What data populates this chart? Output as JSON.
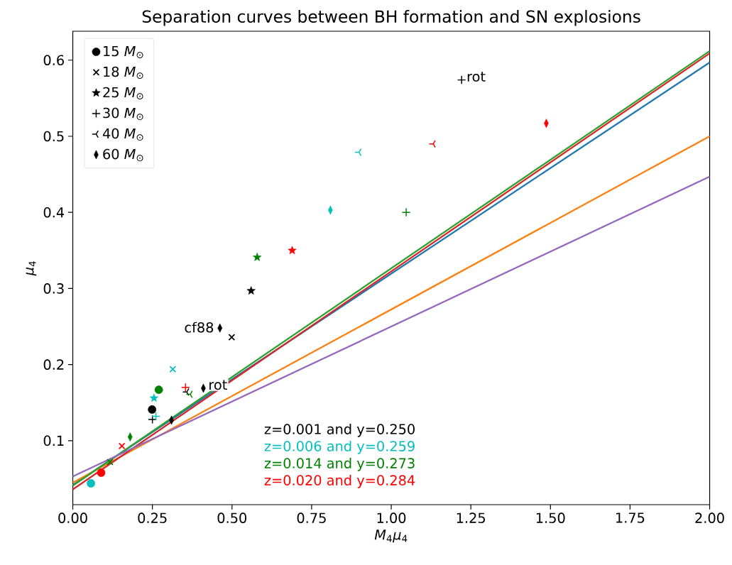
{
  "chart_data": {
    "type": "scatter",
    "title": "Separation curves between BH formation and SN explosions",
    "xlabel": "*M*$_{4}$*μ*$_{4}$",
    "ylabel": "*μ*$_{4}$",
    "xlim": [
      0,
      2
    ],
    "ylim": [
      0.016,
      0.638
    ],
    "xticks": [
      {
        "value": 0,
        "label": "0.00"
      },
      0.25,
      {
        "value": 0.5,
        "label": "0.50"
      },
      0.75,
      {
        "value": 1,
        "label": "1.00"
      },
      1.25,
      {
        "value": 1.5,
        "label": "1.50"
      },
      1.75,
      {
        "value": 2,
        "label": "2.00"
      }
    ],
    "yticks": [
      0.1,
      0.2,
      0.3,
      0.4,
      0.5,
      0.6
    ],
    "grid": false,
    "legend": "top left",
    "series": [
      {
        "type": "line",
        "color": "#1f77b4",
        "marker": "none",
        "x": [
          0,
          2
        ],
        "values": [
          0.042,
          0.597
        ]
      },
      {
        "type": "line",
        "color": "#ff7f0e",
        "marker": "none",
        "x": [
          0,
          2
        ],
        "values": [
          0.045,
          0.5
        ]
      },
      {
        "type": "line",
        "color": "#2ca02c",
        "marker": "none",
        "x": [
          0,
          2
        ],
        "values": [
          0.041,
          0.612
        ]
      },
      {
        "type": "line",
        "color": "#d62728",
        "marker": "none",
        "x": [
          0,
          2
        ],
        "values": [
          0.036,
          0.609
        ]
      },
      {
        "type": "line",
        "color": "#9467bd",
        "marker": "none",
        "x": [
          0,
          2
        ],
        "values": [
          0.053,
          0.447
        ]
      },
      {
        "name": "15 *M*$_{⊙}$",
        "marker": "circle",
        "x": [
          0.249,
          0.057,
          0.27,
          0.089
        ],
        "values": [
          0.141,
          0.044,
          0.167,
          0.058
        ],
        "colors": [
          "#000000",
          "#00bfbf",
          "#008000",
          "#ff0000"
        ]
      },
      {
        "name": "18 *M*$_{⊙}$",
        "marker": "cross",
        "x": [
          0.499,
          0.314,
          0.117,
          0.154
        ],
        "values": [
          0.236,
          0.194,
          0.072,
          0.093
        ],
        "colors": [
          "#000000",
          "#00bfbf",
          "#008000",
          "#ff0000"
        ]
      },
      {
        "name": "25 *M*$_{⊙}$",
        "marker": "star",
        "x": [
          0.56,
          0.255,
          0.579,
          0.689
        ],
        "values": [
          0.297,
          0.156,
          0.341,
          0.35
        ],
        "colors": [
          "#000000",
          "#00bfbf",
          "#008000",
          "#ff0000"
        ]
      },
      {
        "name": "30 *M*$_{⊙}$",
        "marker": "plus",
        "x": [
          0.25,
          0.261,
          1.047,
          0.354,
          1.221
        ],
        "values": [
          0.128,
          0.132,
          0.4,
          0.17,
          0.574
        ],
        "colors": [
          "#000000",
          "#00bfbf",
          "#008000",
          "#ff0000",
          "#000000"
        ]
      },
      {
        "name": "40 *M*$_{⊙}$",
        "x": [
          0.358,
          0.899,
          0.369,
          1.132
        ],
        "values": [
          0.164,
          0.479,
          0.161,
          0.49
        ],
        "colors": [
          "#000000",
          "#00bfbf",
          "#008000",
          "#ff0000"
        ]
      },
      {
        "name": "60 *M*$_{⊙}$",
        "marker": "diamond",
        "x": [
          0.31,
          0.809,
          0.18,
          1.487,
          0.462,
          0.41
        ],
        "values": [
          0.127,
          0.403,
          0.105,
          0.517,
          0.248,
          0.169
        ],
        "colors": [
          "#000000",
          "#00bfbf",
          "#008000",
          "#ff0000",
          "#000000",
          "#000000"
        ]
      }
    ],
    "annotations": [
      {
        "text": "rot",
        "x": 1.221,
        "y": 0.574
      },
      {
        "text": "cf88",
        "x": 0.462,
        "y": 0.248
      },
      {
        "text": "rot",
        "x": 0.41,
        "y": 0.169
      },
      "z=0.001 and y=0.250",
      "z=0.006 and y=0.259",
      "z=0.014 and y=0.273",
      "z=0.020 and y=0.284"
    ]
  }
}
